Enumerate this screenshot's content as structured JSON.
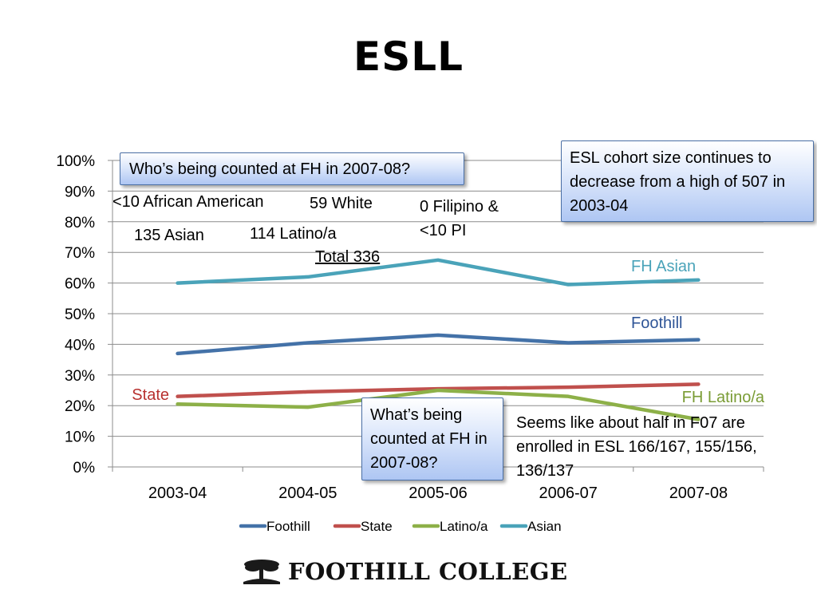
{
  "slide": {
    "title": "ESLL"
  },
  "chart_data": {
    "type": "line",
    "categories": [
      "2003-04",
      "2004-05",
      "2005-06",
      "2006-07",
      "2007-08"
    ],
    "y_ticks": [
      "0%",
      "10%",
      "20%",
      "30%",
      "40%",
      "50%",
      "60%",
      "70%",
      "80%",
      "90%",
      "100%"
    ],
    "ylim": [
      0,
      100
    ],
    "y_unit": "percent",
    "grid": true,
    "legend_position": "bottom",
    "series": [
      {
        "name": "Foothill",
        "label": "Foothill",
        "color": "#4472a8",
        "values": [
          37,
          40.5,
          43,
          40.5,
          41.5
        ]
      },
      {
        "name": "State",
        "label": "State",
        "color": "#c0504d",
        "values": [
          23,
          24.5,
          25.5,
          26,
          27
        ]
      },
      {
        "name": "Latino/a",
        "label": "FH Latino/a",
        "color": "#8db048",
        "values": [
          20.5,
          19.5,
          25,
          23,
          15.5
        ]
      },
      {
        "name": "Asian",
        "label": "FH Asian",
        "color": "#4aa3b9",
        "values": [
          60,
          62,
          67.5,
          59.5,
          61
        ]
      }
    ]
  },
  "annotations": {
    "who_counted": "Who’s being counted at FH in 2007-08?",
    "african_american": "<10 African American",
    "white": "59 White",
    "filipino_line1": "0 Filipino &",
    "filipino_line2": "<10 PI",
    "asian": "135 Asian",
    "latino": "114 Latino/a",
    "total": "Total 336",
    "cohort_box": "ESL cohort size continues to decrease from a high of 507 in 2003-04",
    "what_counted": "What’s being counted at FH in 2007-08?",
    "enrolled_note": "Seems like about half in F07 are enrolled in ESL 166/167, 155/156, 136/137"
  },
  "footer": {
    "logo_text": "FOOTHILL COLLEGE",
    "logo_icon": "tree-icon"
  }
}
